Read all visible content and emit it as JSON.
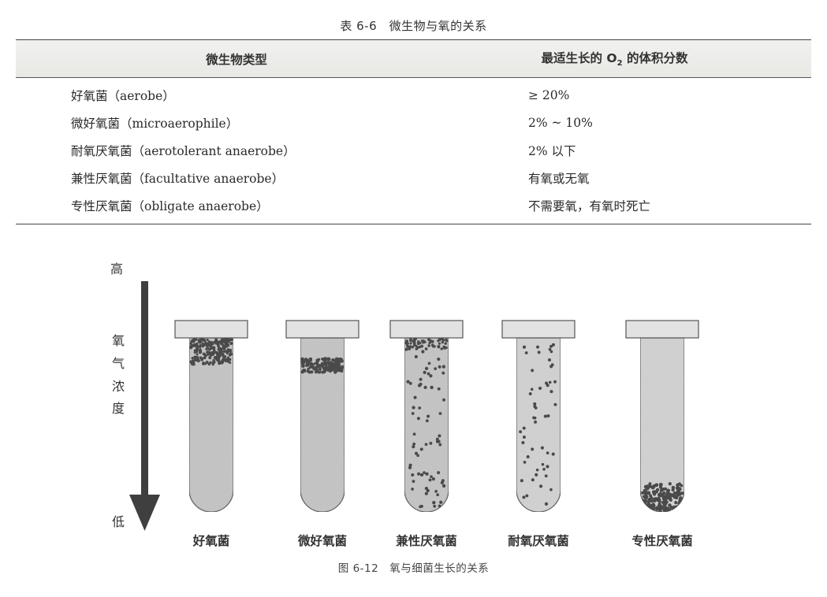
{
  "table": {
    "title": "表 6-6　微生物与氧的关系",
    "headers": {
      "col1": "微生物类型",
      "col2_prefix": "最适生长的 O",
      "col2_sub": "2",
      "col2_suffix": " 的体积分数"
    },
    "rows": [
      {
        "type": "好氧菌（aerobe）",
        "o2": "≥ 20%"
      },
      {
        "type": "微好氧菌（microaerophile）",
        "o2": "2% ~ 10%"
      },
      {
        "type": "耐氧厌氧菌（aerotolerant anaerobe）",
        "o2": "2% 以下"
      },
      {
        "type": "兼性厌氧菌（facultative anaerobe）",
        "o2": "有氧或无氧"
      },
      {
        "type": "专性厌氧菌（obligate anaerobe）",
        "o2": "不需要氧，有氧时死亡"
      }
    ]
  },
  "figure": {
    "axis": {
      "high": "高",
      "label_chars": [
        "氧",
        "气",
        "浓",
        "度"
      ],
      "low": "低"
    },
    "tubes": [
      {
        "label": "好氧菌",
        "pattern": "top"
      },
      {
        "label": "微好氧菌",
        "pattern": "band"
      },
      {
        "label": "兼性厌氧菌",
        "pattern": "dense"
      },
      {
        "label": "耐氧厌氧菌",
        "pattern": "sparse"
      },
      {
        "label": "专性厌氧菌",
        "pattern": "bottom"
      }
    ],
    "caption": "图 6-12　氧与细菌生长的关系"
  },
  "colors": {
    "arrow": "#3f3f3f",
    "medium": "#c4c4c4",
    "cap": "#e2e2e2",
    "dot": "#4a4a4a"
  }
}
